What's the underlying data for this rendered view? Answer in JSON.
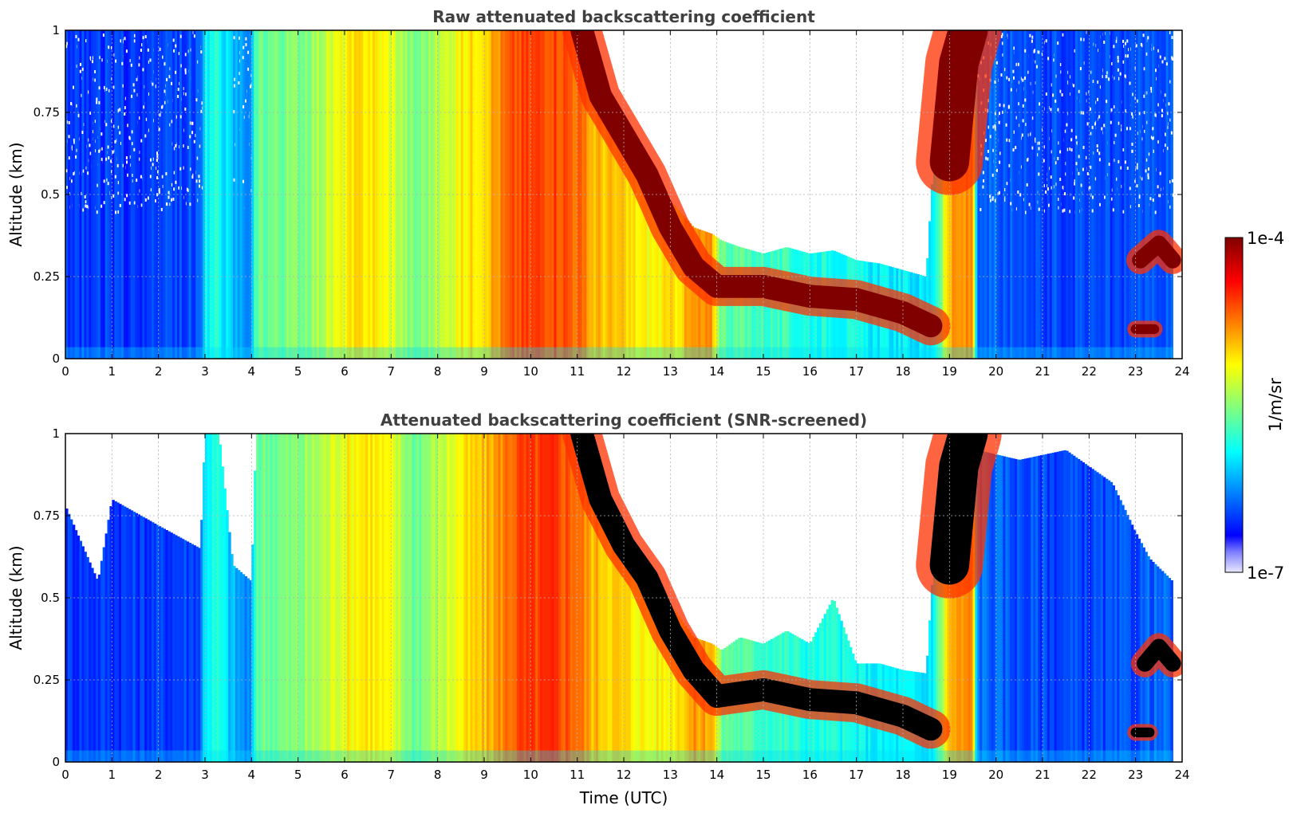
{
  "chart_data": [
    {
      "type": "heatmap",
      "title": "Raw attenuated backscattering coefficient",
      "xlabel": "",
      "ylabel": "Altitude (km)",
      "xlim": [
        0,
        24
      ],
      "ylim": [
        0,
        1
      ],
      "x_ticks": [
        "0",
        "1",
        "2",
        "3",
        "4",
        "5",
        "6",
        "7",
        "8",
        "9",
        "10",
        "11",
        "12",
        "13",
        "14",
        "15",
        "16",
        "17",
        "18",
        "19",
        "20",
        "21",
        "22",
        "23",
        "24"
      ],
      "y_ticks": [
        "0",
        "0.25",
        "0.5",
        "0.75",
        "1"
      ],
      "grid": true,
      "colorscale": "jet",
      "log_color_scale": true,
      "value_range": [
        1e-07,
        0.0001
      ],
      "low_signal_noise": true,
      "columns": [
        {
          "t": 0.0,
          "v": 0.18,
          "top": 1.0
        },
        {
          "t": 1.0,
          "v": 0.18,
          "top": 1.0
        },
        {
          "t": 2.0,
          "v": 0.18,
          "top": 1.0
        },
        {
          "t": 2.9,
          "v": 0.2,
          "top": 1.0
        },
        {
          "t": 3.0,
          "v": 0.38,
          "top": 1.0
        },
        {
          "t": 3.3,
          "v": 0.4,
          "top": 1.0
        },
        {
          "t": 3.6,
          "v": 0.3,
          "top": 1.0
        },
        {
          "t": 4.0,
          "v": 0.24,
          "top": 1.0
        },
        {
          "t": 4.1,
          "v": 0.48,
          "top": 1.0
        },
        {
          "t": 5.0,
          "v": 0.5,
          "top": 1.0
        },
        {
          "t": 5.5,
          "v": 0.55,
          "top": 1.0
        },
        {
          "t": 6.0,
          "v": 0.62,
          "top": 1.0
        },
        {
          "t": 6.5,
          "v": 0.66,
          "top": 1.0
        },
        {
          "t": 7.0,
          "v": 0.6,
          "top": 1.0
        },
        {
          "t": 7.5,
          "v": 0.48,
          "top": 1.0
        },
        {
          "t": 8.0,
          "v": 0.55,
          "top": 1.0
        },
        {
          "t": 8.5,
          "v": 0.63,
          "top": 1.0
        },
        {
          "t": 9.0,
          "v": 0.68,
          "top": 1.0
        },
        {
          "t": 9.7,
          "v": 0.8,
          "top": 1.0
        },
        {
          "t": 10.5,
          "v": 0.82,
          "top": 1.0
        },
        {
          "t": 11.0,
          "v": 0.78,
          "top": 1.0
        },
        {
          "t": 11.3,
          "v": 0.7,
          "top": 0.98
        },
        {
          "t": 11.7,
          "v": 0.68,
          "top": 0.78
        },
        {
          "t": 12.0,
          "v": 0.66,
          "top": 0.68
        },
        {
          "t": 12.5,
          "v": 0.62,
          "top": 0.6
        },
        {
          "t": 13.0,
          "v": 0.64,
          "top": 0.48
        },
        {
          "t": 13.5,
          "v": 0.72,
          "top": 0.4
        },
        {
          "t": 13.9,
          "v": 0.72,
          "top": 0.38
        },
        {
          "t": 14.1,
          "v": 0.48,
          "top": 0.36
        },
        {
          "t": 14.5,
          "v": 0.46,
          "top": 0.34
        },
        {
          "t": 15.0,
          "v": 0.44,
          "top": 0.32
        },
        {
          "t": 15.5,
          "v": 0.42,
          "top": 0.34
        },
        {
          "t": 16.0,
          "v": 0.4,
          "top": 0.32
        },
        {
          "t": 16.5,
          "v": 0.4,
          "top": 0.33
        },
        {
          "t": 17.0,
          "v": 0.38,
          "top": 0.3
        },
        {
          "t": 17.5,
          "v": 0.36,
          "top": 0.29
        },
        {
          "t": 18.0,
          "v": 0.36,
          "top": 0.27
        },
        {
          "t": 18.5,
          "v": 0.34,
          "top": 0.25
        },
        {
          "t": 18.7,
          "v": 0.4,
          "top": 0.7
        },
        {
          "t": 19.0,
          "v": 0.7,
          "top": 1.0
        },
        {
          "t": 19.5,
          "v": 0.74,
          "top": 1.0
        },
        {
          "t": 19.6,
          "v": 0.24,
          "top": 1.0
        },
        {
          "t": 20.5,
          "v": 0.2,
          "top": 1.0
        },
        {
          "t": 21.5,
          "v": 0.19,
          "top": 1.0
        },
        {
          "t": 22.5,
          "v": 0.19,
          "top": 1.0
        },
        {
          "t": 23.0,
          "v": 0.2,
          "top": 1.0
        },
        {
          "t": 23.8,
          "v": 0.22,
          "top": 1.0
        }
      ],
      "layers": [
        {
          "points": [
            [
              11.1,
              1.0
            ],
            [
              11.5,
              0.8
            ],
            [
              12.0,
              0.68
            ],
            [
              12.5,
              0.56
            ],
            [
              13.0,
              0.4
            ],
            [
              13.5,
              0.28
            ],
            [
              14.0,
              0.22
            ],
            [
              15.0,
              0.22
            ],
            [
              16.0,
              0.19
            ],
            [
              17.0,
              0.18
            ],
            [
              18.0,
              0.14
            ],
            [
              18.6,
              0.1
            ]
          ],
          "thickness": 0.07
        },
        {
          "points": [
            [
              19.0,
              0.6
            ],
            [
              19.2,
              0.9
            ],
            [
              19.4,
              1.0
            ]
          ],
          "thickness": 0.12
        },
        {
          "points": [
            [
              23.1,
              0.3
            ],
            [
              23.5,
              0.35
            ],
            [
              23.8,
              0.3
            ]
          ],
          "thickness": 0.05
        },
        {
          "points": [
            [
              23.0,
              0.09
            ],
            [
              23.4,
              0.09
            ]
          ],
          "thickness": 0.03
        }
      ]
    },
    {
      "type": "heatmap",
      "title": "Attenuated backscattering coefficient (SNR-screened)",
      "xlabel": "Time (UTC)",
      "ylabel": "Altitude (km)",
      "xlim": [
        0,
        24
      ],
      "ylim": [
        0,
        1
      ],
      "x_ticks": [
        "0",
        "1",
        "2",
        "3",
        "4",
        "5",
        "6",
        "7",
        "8",
        "9",
        "10",
        "11",
        "12",
        "13",
        "14",
        "15",
        "16",
        "17",
        "18",
        "19",
        "20",
        "21",
        "22",
        "23",
        "24"
      ],
      "y_ticks": [
        "0",
        "0.25",
        "0.5",
        "0.75",
        "1"
      ],
      "grid": true,
      "colorscale": "jet",
      "log_color_scale": true,
      "value_range": [
        1e-07,
        0.0001
      ],
      "low_signal_noise": false,
      "saturated_color": "#000000",
      "columns": [
        {
          "t": 0.0,
          "v": 0.18,
          "top": 0.78
        },
        {
          "t": 0.7,
          "v": 0.18,
          "top": 0.55
        },
        {
          "t": 1.0,
          "v": 0.18,
          "top": 0.8
        },
        {
          "t": 2.0,
          "v": 0.18,
          "top": 0.72
        },
        {
          "t": 2.9,
          "v": 0.2,
          "top": 0.65
        },
        {
          "t": 3.0,
          "v": 0.38,
          "top": 1.0
        },
        {
          "t": 3.3,
          "v": 0.4,
          "top": 1.0
        },
        {
          "t": 3.6,
          "v": 0.3,
          "top": 0.6
        },
        {
          "t": 4.0,
          "v": 0.24,
          "top": 0.55
        },
        {
          "t": 4.1,
          "v": 0.48,
          "top": 1.0
        },
        {
          "t": 5.0,
          "v": 0.5,
          "top": 1.0
        },
        {
          "t": 5.5,
          "v": 0.55,
          "top": 1.0
        },
        {
          "t": 6.0,
          "v": 0.62,
          "top": 1.0
        },
        {
          "t": 6.5,
          "v": 0.66,
          "top": 1.0
        },
        {
          "t": 7.0,
          "v": 0.6,
          "top": 1.0
        },
        {
          "t": 7.5,
          "v": 0.48,
          "top": 1.0
        },
        {
          "t": 8.0,
          "v": 0.55,
          "top": 1.0
        },
        {
          "t": 8.5,
          "v": 0.63,
          "top": 1.0
        },
        {
          "t": 9.0,
          "v": 0.68,
          "top": 1.0
        },
        {
          "t": 9.7,
          "v": 0.8,
          "top": 1.0
        },
        {
          "t": 10.5,
          "v": 0.82,
          "top": 1.0
        },
        {
          "t": 11.0,
          "v": 0.78,
          "top": 1.0
        },
        {
          "t": 11.3,
          "v": 0.7,
          "top": 0.98
        },
        {
          "t": 11.7,
          "v": 0.68,
          "top": 0.78
        },
        {
          "t": 12.0,
          "v": 0.66,
          "top": 0.7
        },
        {
          "t": 12.5,
          "v": 0.62,
          "top": 0.62
        },
        {
          "t": 13.0,
          "v": 0.64,
          "top": 0.48
        },
        {
          "t": 13.5,
          "v": 0.72,
          "top": 0.38
        },
        {
          "t": 13.9,
          "v": 0.72,
          "top": 0.36
        },
        {
          "t": 14.1,
          "v": 0.48,
          "top": 0.34
        },
        {
          "t": 14.5,
          "v": 0.46,
          "top": 0.38
        },
        {
          "t": 15.0,
          "v": 0.44,
          "top": 0.36
        },
        {
          "t": 15.5,
          "v": 0.42,
          "top": 0.4
        },
        {
          "t": 16.0,
          "v": 0.4,
          "top": 0.36
        },
        {
          "t": 16.5,
          "v": 0.4,
          "top": 0.5
        },
        {
          "t": 17.0,
          "v": 0.38,
          "top": 0.3
        },
        {
          "t": 17.5,
          "v": 0.36,
          "top": 0.3
        },
        {
          "t": 18.0,
          "v": 0.36,
          "top": 0.28
        },
        {
          "t": 18.5,
          "v": 0.34,
          "top": 0.27
        },
        {
          "t": 18.7,
          "v": 0.4,
          "top": 0.7
        },
        {
          "t": 19.0,
          "v": 0.7,
          "top": 1.0
        },
        {
          "t": 19.5,
          "v": 0.74,
          "top": 1.0
        },
        {
          "t": 19.6,
          "v": 0.24,
          "top": 0.95
        },
        {
          "t": 20.5,
          "v": 0.2,
          "top": 0.92
        },
        {
          "t": 21.5,
          "v": 0.19,
          "top": 0.95
        },
        {
          "t": 22.5,
          "v": 0.19,
          "top": 0.85
        },
        {
          "t": 23.0,
          "v": 0.2,
          "top": 0.7
        },
        {
          "t": 23.3,
          "v": 0.22,
          "top": 0.62
        },
        {
          "t": 23.8,
          "v": 0.22,
          "top": 0.55
        }
      ],
      "layers": [
        {
          "points": [
            [
              11.1,
              1.0
            ],
            [
              11.5,
              0.8
            ],
            [
              12.0,
              0.66
            ],
            [
              12.5,
              0.56
            ],
            [
              13.0,
              0.4
            ],
            [
              13.5,
              0.28
            ],
            [
              14.0,
              0.2
            ],
            [
              15.0,
              0.22
            ],
            [
              16.0,
              0.19
            ],
            [
              17.0,
              0.18
            ],
            [
              18.0,
              0.14
            ],
            [
              18.6,
              0.1
            ]
          ],
          "thickness": 0.07
        },
        {
          "points": [
            [
              19.0,
              0.6
            ],
            [
              19.2,
              0.9
            ],
            [
              19.4,
              1.0
            ]
          ],
          "thickness": 0.12
        },
        {
          "points": [
            [
              23.2,
              0.3
            ],
            [
              23.5,
              0.35
            ],
            [
              23.8,
              0.3
            ]
          ],
          "thickness": 0.05
        },
        {
          "points": [
            [
              23.0,
              0.09
            ],
            [
              23.3,
              0.09
            ]
          ],
          "thickness": 0.03
        }
      ]
    }
  ],
  "colorbar": {
    "label": "1/m/sr",
    "max_label": "1e-4",
    "min_label": "1e-7"
  }
}
